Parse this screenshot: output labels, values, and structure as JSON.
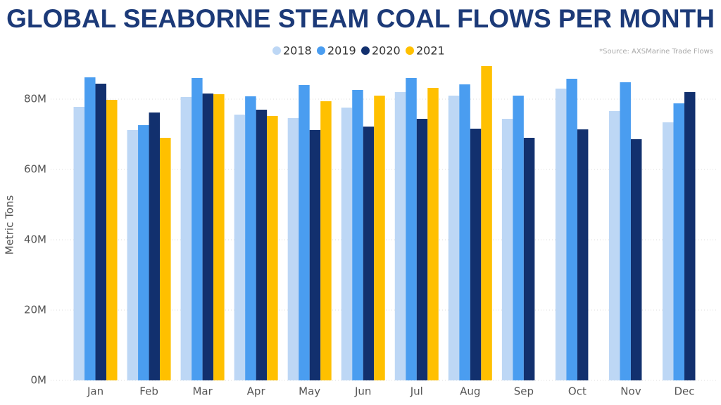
{
  "chart_data": {
    "type": "bar",
    "title": "GLOBAL SEABORNE STEAM COAL FLOWS PER MONTH",
    "source": "*Source: AXSMarine Trade Flows",
    "y_label": "Metric Tons",
    "categories": [
      "Jan",
      "Feb",
      "Mar",
      "Apr",
      "May",
      "Jun",
      "Jul",
      "Aug",
      "Sep",
      "Oct",
      "Nov",
      "Dec"
    ],
    "series": [
      {
        "name": "2018",
        "color": "#bdd7f5",
        "values": [
          77800000,
          71200000,
          80600000,
          75600000,
          74600000,
          77600000,
          82000000,
          81000000,
          74400000,
          83000000,
          76600000,
          73400000
        ]
      },
      {
        "name": "2019",
        "color": "#4a9df0",
        "values": [
          86200000,
          72600000,
          86000000,
          80800000,
          84000000,
          82600000,
          86000000,
          84200000,
          81000000,
          85800000,
          84800000,
          78800000
        ]
      },
      {
        "name": "2020",
        "color": "#12306e",
        "values": [
          84400000,
          76200000,
          81600000,
          77000000,
          71200000,
          72200000,
          74400000,
          71600000,
          69000000,
          71400000,
          68600000,
          82000000
        ]
      },
      {
        "name": "2021",
        "color": "#ffc000",
        "values": [
          79800000,
          69000000,
          81400000,
          75200000,
          79400000,
          81000000,
          83200000,
          89400000,
          null,
          null,
          null,
          null
        ]
      }
    ],
    "ylim": [
      0,
      92000000
    ],
    "yticks": [
      {
        "value": 0,
        "label": "0M"
      },
      {
        "value": 20000000,
        "label": "20M"
      },
      {
        "value": 40000000,
        "label": "40M"
      },
      {
        "value": 60000000,
        "label": "60M"
      },
      {
        "value": 80000000,
        "label": "80M"
      }
    ],
    "grid": true
  }
}
